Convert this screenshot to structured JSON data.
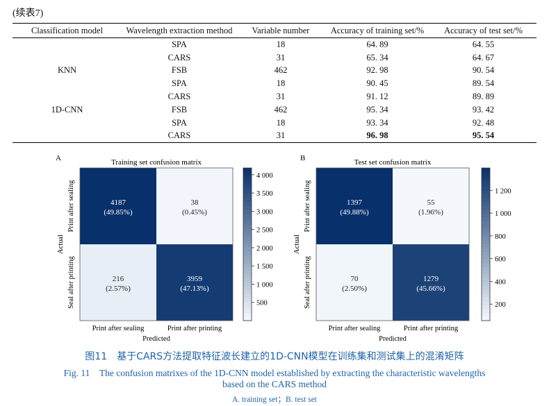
{
  "table": {
    "continued": "(续表7)",
    "headers": [
      "Classification model",
      "Wavelength extraction method",
      "Variable number",
      "Accuracy of training set/%",
      "Accuracy of test set/%"
    ],
    "models": [
      "KNN",
      "1D-CNN"
    ],
    "rows": [
      {
        "method": "SPA",
        "variables": "18",
        "train": "64. 89",
        "test": "64. 55"
      },
      {
        "method": "CARS",
        "variables": "31",
        "train": "65. 34",
        "test": "64. 67"
      },
      {
        "method": "FSB",
        "variables": "462",
        "train": "92. 98",
        "test": "90. 54"
      },
      {
        "method": "SPA",
        "variables": "18",
        "train": "90. 45",
        "test": "89. 54"
      },
      {
        "method": "CARS",
        "variables": "31",
        "train": "91. 12",
        "test": "89. 89"
      },
      {
        "method": "FSB",
        "variables": "462",
        "train": "95. 34",
        "test": "93. 42"
      },
      {
        "method": "SPA",
        "variables": "18",
        "train": "93. 34",
        "test": "92. 48"
      },
      {
        "method": "CARS",
        "variables": "31",
        "train": "96. 98",
        "test": "95. 54"
      }
    ]
  },
  "chart_data": [
    {
      "type": "heatmap",
      "panel_label": "A",
      "title": "Training set confusion matrix",
      "xlabel": "Predicted",
      "ylabel": "Actual",
      "x_categories": [
        "Print after sealing",
        "Print after printing"
      ],
      "y_categories": [
        "Print after sealing",
        "Seal after printing"
      ],
      "values": [
        [
          4187,
          38
        ],
        [
          216,
          3959
        ]
      ],
      "percent_labels": [
        [
          "(49.85%)",
          "(0.45%)"
        ],
        [
          "(2.57%)",
          "(47.13%)"
        ]
      ],
      "colorbar_range": [
        0,
        4187
      ],
      "colorbar_ticks": [
        500,
        1000,
        1500,
        2000,
        2500,
        3000,
        3500,
        4000
      ],
      "colorbar_tick_labels": [
        "500",
        "1 000",
        "1 500",
        "2 000",
        "2 500",
        "3 000",
        "3 500",
        "4 000"
      ]
    },
    {
      "type": "heatmap",
      "panel_label": "B",
      "title": "Test set confusion matrix",
      "xlabel": "Predicted",
      "ylabel": "Actual",
      "x_categories": [
        "Print after sealing",
        "Print after printing"
      ],
      "y_categories": [
        "Print after sealing",
        "Seal after printing"
      ],
      "values": [
        [
          1397,
          55
        ],
        [
          70,
          1279
        ]
      ],
      "percent_labels": [
        [
          "(49.88%)",
          "(1.96%)"
        ],
        [
          "(2.50%)",
          "(45.66%)"
        ]
      ],
      "colorbar_range": [
        55,
        1397
      ],
      "colorbar_ticks": [
        200,
        400,
        600,
        800,
        1000,
        1200
      ],
      "colorbar_tick_labels": [
        "200",
        "400",
        "600",
        "800",
        "1 000",
        "1 200"
      ]
    }
  ],
  "colors": {
    "high": "#08306b",
    "low": "#f4f8fd",
    "caption": "#1f63a8"
  },
  "caption": {
    "zh": "图11　基于CARS方法提取特征波长建立的1D-CNN模型在训练集和测试集上的混淆矩阵",
    "en_line1": "Fig. 11　The confusion matrixes of the 1D-CNN model established by extracting the characteristic wavelengths",
    "en_line2": "based on the CARS method",
    "sub": "A. training set；B. test set"
  }
}
